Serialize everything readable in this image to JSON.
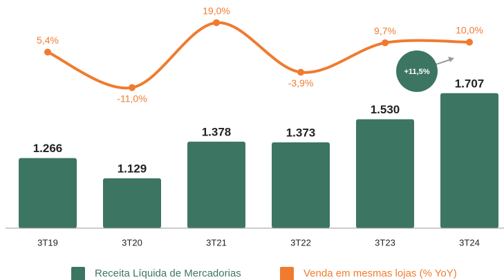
{
  "chart_data": {
    "type": "combo",
    "categories": [
      "3T19",
      "3T20",
      "3T21",
      "3T22",
      "3T23",
      "3T24"
    ],
    "series": [
      {
        "name": "Receita Líquida de Mercadorias",
        "type": "bar",
        "color": "#3d7563",
        "values": [
          1266,
          1129,
          1378,
          1373,
          1530,
          1707
        ],
        "value_labels": [
          "1.266",
          "1.129",
          "1.378",
          "1.373",
          "1.530",
          "1.707"
        ]
      },
      {
        "name": "Venda em mesmas lojas (% YoY)",
        "type": "line",
        "axis": "y2",
        "color": "#f07b2f",
        "values": [
          5.4,
          -11.0,
          19.0,
          -3.9,
          9.7,
          10.0
        ],
        "value_labels": [
          "5,4%",
          "-11,0%",
          "19,0%",
          "-3,9%",
          "9,7%",
          "10,0%"
        ]
      }
    ],
    "ylim": [
      790,
      2340
    ],
    "y2lim": [
      -76,
      29.5
    ],
    "annotation": "+11,5%"
  }
}
